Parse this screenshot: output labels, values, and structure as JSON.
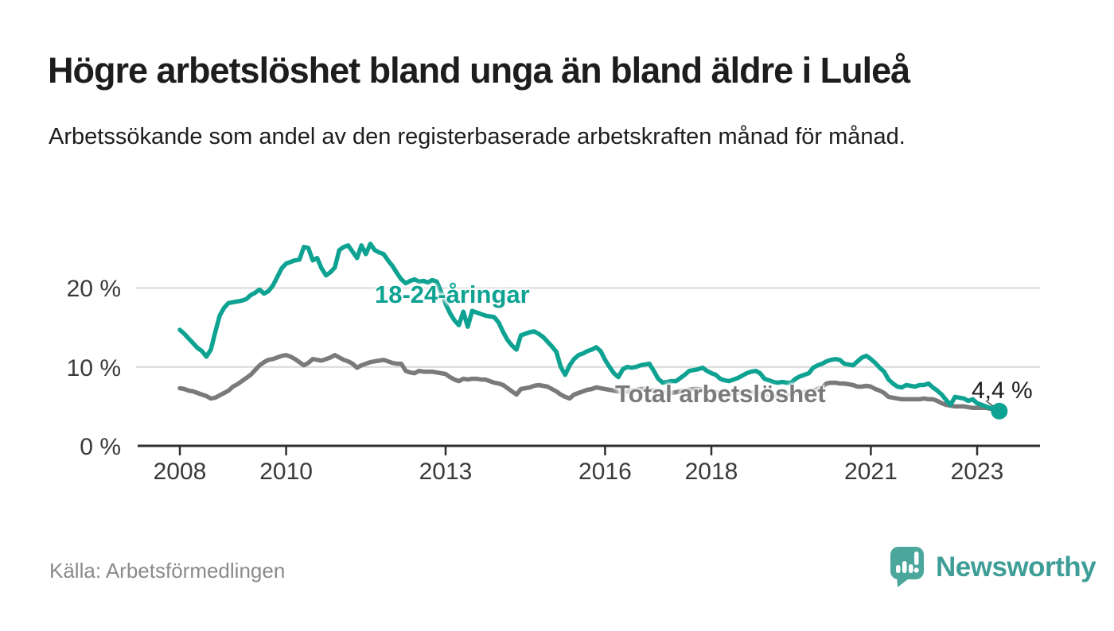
{
  "header": {
    "title": "Högre arbetslöshet bland unga än bland äldre i Luleå",
    "subtitle": "Arbetssökande som andel av den registerbaserade arbetskraften månad för månad."
  },
  "footer": {
    "source": "Källa: Arbetsförmedlingen",
    "brand": "Newsworthy"
  },
  "colors": {
    "youth_line": "#0da291",
    "total_line": "#7a7a7a",
    "grid": "#d9d9d9",
    "axis": "#2e2e2e",
    "tick_text": "#3a3a3a",
    "annotation_text": "#1d1d1b",
    "logo_teal": "#4ba69b",
    "brand_text": "#3e9e97"
  },
  "chart_data": {
    "type": "line",
    "x_unit": "month",
    "x_start": {
      "year": 2008,
      "month": 1
    },
    "x_end": {
      "year": 2023,
      "month": 6
    },
    "x_tick_years": [
      2008,
      2010,
      2013,
      2016,
      2018,
      2021,
      2023
    ],
    "y_ticks": [
      {
        "value": 0,
        "label": "0 %"
      },
      {
        "value": 10,
        "label": "10 %"
      },
      {
        "value": 20,
        "label": "20 %"
      }
    ],
    "ylim": [
      0,
      27
    ],
    "grid": true,
    "legend": "inline-labels",
    "series": [
      {
        "name": "Total arbetslöshet",
        "color": "#7a7a7a",
        "values": [
          7.3,
          7.2,
          7.0,
          6.9,
          6.7,
          6.5,
          6.3,
          6.0,
          6.1,
          6.4,
          6.7,
          7.0,
          7.5,
          7.8,
          8.2,
          8.6,
          9.0,
          9.6,
          10.2,
          10.6,
          10.9,
          11.0,
          11.2,
          11.4,
          11.5,
          11.3,
          11.0,
          10.6,
          10.2,
          10.5,
          11.0,
          10.9,
          10.8,
          11.0,
          11.2,
          11.5,
          11.2,
          10.9,
          10.7,
          10.4,
          9.9,
          10.2,
          10.4,
          10.6,
          10.7,
          10.8,
          10.9,
          10.7,
          10.5,
          10.4,
          10.4,
          9.5,
          9.3,
          9.2,
          9.5,
          9.4,
          9.4,
          9.4,
          9.3,
          9.2,
          9.1,
          8.7,
          8.4,
          8.2,
          8.5,
          8.4,
          8.5,
          8.5,
          8.4,
          8.4,
          8.2,
          8.0,
          7.9,
          7.7,
          7.3,
          6.9,
          6.5,
          7.2,
          7.3,
          7.4,
          7.6,
          7.7,
          7.6,
          7.5,
          7.2,
          6.9,
          6.5,
          6.2,
          6.0,
          6.5,
          6.7,
          6.9,
          7.1,
          7.2,
          7.4,
          7.3,
          7.2,
          7.1,
          7.0,
          6.9,
          6.8,
          6.9,
          7.0,
          7.1,
          7.2,
          7.2,
          7.1,
          7.0,
          6.9,
          6.8,
          6.7,
          6.7,
          6.8,
          6.9,
          7.0,
          7.1,
          7.2,
          7.2,
          7.1,
          7.0,
          6.9,
          6.8,
          6.7,
          6.6,
          6.5,
          6.6,
          6.7,
          6.8,
          6.8,
          6.8,
          6.7,
          6.6,
          6.5,
          6.4,
          6.3,
          6.3,
          6.3,
          6.4,
          6.5,
          6.6,
          6.7,
          6.8,
          6.9,
          7.0,
          7.2,
          7.4,
          7.9,
          8.0,
          8.0,
          7.9,
          7.9,
          7.8,
          7.7,
          7.5,
          7.5,
          7.6,
          7.5,
          7.2,
          7.0,
          6.7,
          6.2,
          6.1,
          6.0,
          5.9,
          5.9,
          5.9,
          5.9,
          5.9,
          6.0,
          5.9,
          5.9,
          5.7,
          5.4,
          5.2,
          5.1,
          5.0,
          5.0,
          5.0,
          4.9,
          4.8,
          4.8,
          4.8,
          4.8,
          4.7,
          4.6,
          4.6
        ]
      },
      {
        "name": "18-24-åringar",
        "color": "#0da291",
        "values": [
          14.7,
          14.2,
          13.6,
          13.0,
          12.4,
          12.0,
          11.3,
          12.2,
          14.4,
          16.5,
          17.5,
          18.1,
          18.2,
          18.3,
          18.4,
          18.6,
          19.1,
          19.4,
          19.8,
          19.3,
          19.6,
          20.3,
          21.4,
          22.5,
          23.1,
          23.3,
          23.5,
          23.6,
          25.2,
          25.1,
          23.5,
          23.8,
          22.5,
          21.6,
          22.0,
          22.6,
          24.8,
          25.2,
          25.4,
          24.6,
          23.8,
          25.4,
          24.3,
          25.6,
          24.8,
          24.5,
          24.3,
          23.5,
          22.8,
          21.9,
          21.1,
          20.6,
          20.9,
          21.1,
          20.8,
          20.9,
          20.7,
          21.0,
          20.8,
          19.5,
          18.0,
          16.8,
          15.9,
          15.3,
          17.0,
          15.1,
          17.1,
          16.9,
          16.7,
          16.5,
          16.4,
          16.3,
          15.6,
          14.4,
          13.4,
          12.7,
          12.2,
          14.0,
          14.2,
          14.4,
          14.5,
          14.2,
          13.8,
          13.2,
          12.6,
          11.9,
          10.0,
          9.0,
          10.2,
          11.0,
          11.5,
          11.7,
          12.0,
          12.2,
          12.5,
          12.0,
          10.9,
          10.0,
          9.2,
          8.7,
          9.7,
          10.0,
          9.9,
          10.0,
          10.2,
          10.3,
          10.4,
          9.5,
          8.5,
          8.0,
          8.1,
          8.2,
          8.2,
          8.6,
          9.0,
          9.5,
          9.6,
          9.7,
          9.9,
          9.5,
          9.2,
          9.0,
          8.5,
          8.3,
          8.2,
          8.4,
          8.6,
          8.9,
          9.2,
          9.4,
          9.5,
          9.2,
          8.5,
          8.3,
          8.1,
          8.0,
          8.1,
          8.0,
          8.0,
          8.5,
          8.8,
          9.0,
          9.2,
          9.9,
          10.2,
          10.4,
          10.7,
          10.9,
          11.0,
          10.9,
          10.4,
          10.3,
          10.2,
          10.7,
          11.2,
          11.4,
          11.0,
          10.5,
          9.9,
          9.4,
          8.4,
          7.9,
          7.5,
          7.4,
          7.7,
          7.6,
          7.5,
          7.7,
          7.7,
          7.9,
          7.4,
          7.0,
          6.5,
          5.8,
          5.2,
          6.2,
          6.1,
          6.0,
          5.7,
          5.9,
          5.4,
          5.2,
          5.0,
          4.8,
          4.6,
          4.4
        ]
      }
    ],
    "annotation": {
      "label": "4,4 %",
      "series": "18-24-åringar",
      "value": 4.4,
      "position": "end-of-line"
    }
  }
}
